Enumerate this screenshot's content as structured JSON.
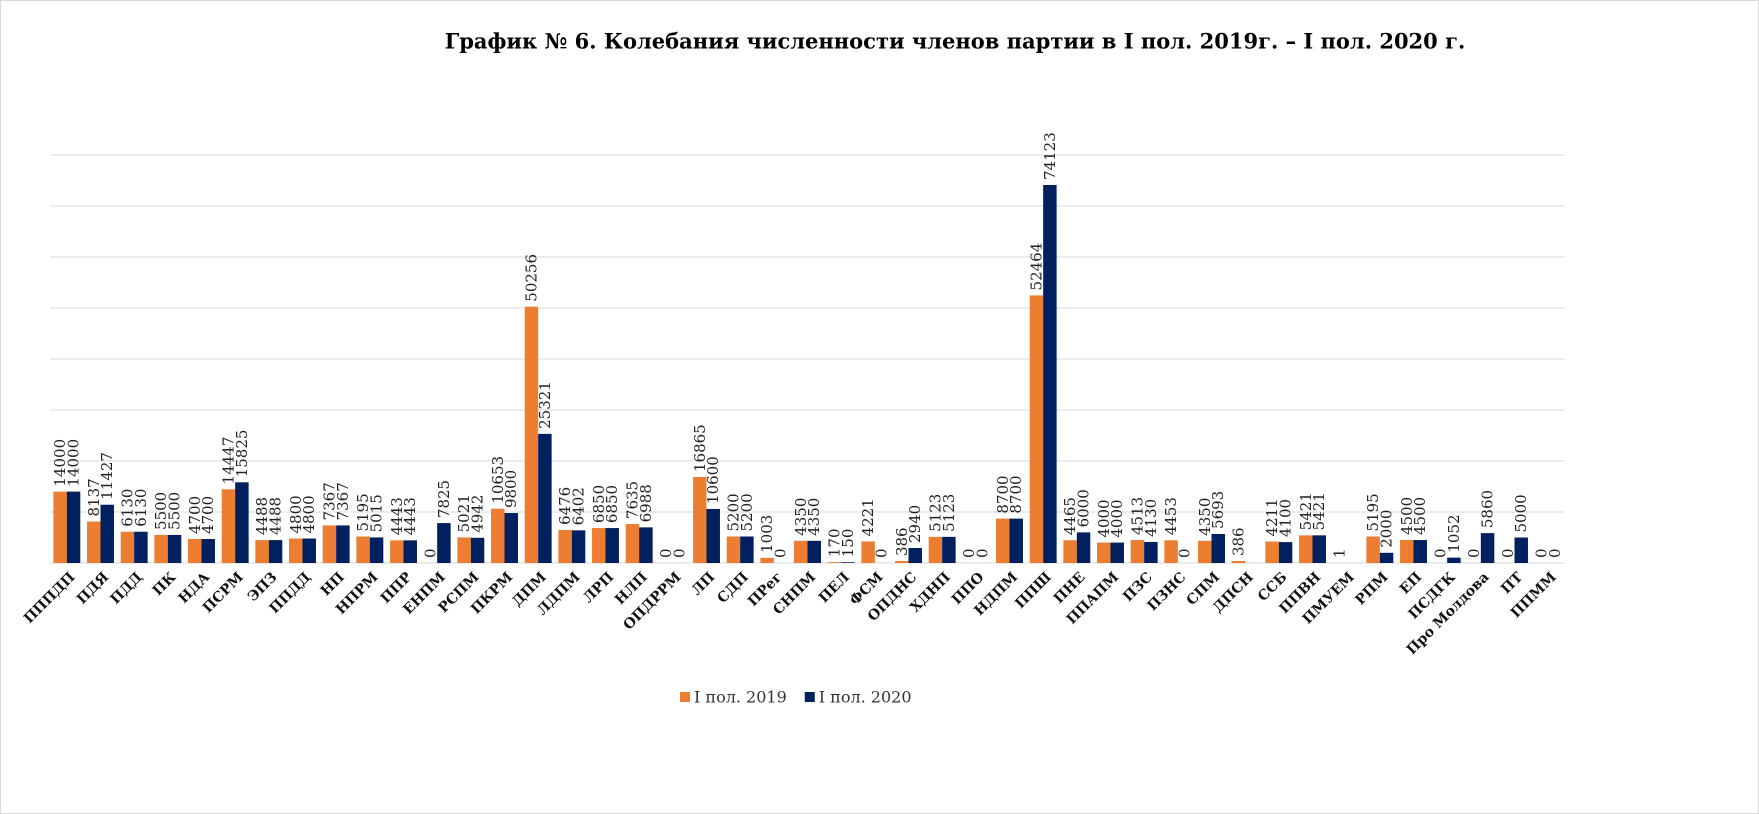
{
  "chart_data": {
    "type": "bar",
    "title": "График № 6. Колебания численности членов партии в I пол. 2019г. – I пол. 2020 г.",
    "categories": [
      "ПППДП",
      "ПДЯ",
      "ПДД",
      "ПК",
      "НДА",
      "ПСРМ",
      "ЭПЗ",
      "ППДД",
      "НП",
      "НПРМ",
      "ППР",
      "ЕНПМ",
      "РСПМ",
      "ПКРМ",
      "ДПМ",
      "ЛДПМ",
      "ЛРП",
      "НЛП",
      "ОПДРРМ",
      "ЛП",
      "СДП",
      "ПРег",
      "СНПМ",
      "ПЕЛ",
      "ФСМ",
      "ОПДНС",
      "ХДНП",
      "ППО",
      "НДПМ",
      "ППШ",
      "ПНЕ",
      "ППАПМ",
      "ПЗС",
      "ПЗНС",
      "СПМ",
      "ДПСН",
      "ССБ",
      "ППВН",
      "ПМУЕМ",
      "РПМ",
      "ЕП",
      "ПСДГК",
      "Про Молдова",
      "ПТ",
      "ППММ"
    ],
    "series": [
      {
        "name": "I пол. 2019",
        "color": "#ED7D31",
        "values": [
          14000,
          8137,
          6130,
          5500,
          4700,
          14447,
          4488,
          4800,
          7367,
          5195,
          4443,
          0,
          5021,
          10653,
          50256,
          6476,
          6850,
          7635,
          0,
          16865,
          5200,
          1003,
          4350,
          170,
          4221,
          386,
          5123,
          0,
          8700,
          52464,
          4465,
          4000,
          4513,
          4453,
          4350,
          386,
          4211,
          5421,
          1,
          5195,
          4500,
          0,
          0,
          0,
          0
        ]
      },
      {
        "name": "I пол. 2020",
        "color": "#002060",
        "values": [
          14000,
          11427,
          6130,
          5500,
          4700,
          15825,
          4488,
          4800,
          7367,
          5015,
          4443,
          7825,
          4942,
          9800,
          25321,
          6402,
          6850,
          6988,
          0,
          10600,
          5200,
          0,
          4350,
          150,
          0,
          2940,
          5123,
          0,
          8700,
          74123,
          6000,
          4000,
          4130,
          0,
          5693,
          null,
          4100,
          5421,
          null,
          2000,
          4500,
          1052,
          5860,
          5000,
          0
        ]
      }
    ],
    "ylim": [
      0,
      80000
    ],
    "yticks": [
      0,
      10000,
      20000,
      30000,
      40000,
      50000,
      60000,
      70000,
      80000
    ],
    "grid": true,
    "legend": "bottom"
  }
}
